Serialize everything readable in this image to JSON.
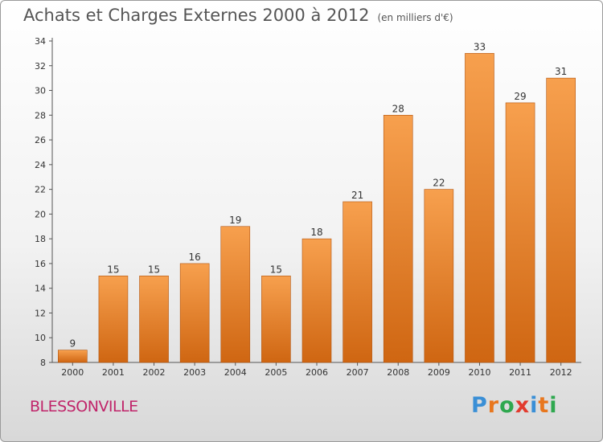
{
  "header": {
    "title": "Achats et Charges Externes 2000 à 2012",
    "unit": "(en milliers d'€)"
  },
  "footer": {
    "commune": "BLESSONVILLE",
    "logo_letters": [
      "P",
      "r",
      "o",
      "x",
      "i",
      "t",
      "i"
    ],
    "logo_colors": [
      "#3a8fd6",
      "#e8771e",
      "#2fa84f",
      "#e23b2e",
      "#3a8fd6",
      "#e8771e",
      "#2fa84f"
    ]
  },
  "chart_data": {
    "type": "bar",
    "title": "Achats et Charges Externes 2000 à 2012",
    "subtitle": "(en milliers d'€)",
    "categories": [
      "2000",
      "2001",
      "2002",
      "2003",
      "2004",
      "2005",
      "2006",
      "2007",
      "2008",
      "2009",
      "2010",
      "2011",
      "2012"
    ],
    "values": [
      9,
      15,
      15,
      16,
      19,
      15,
      18,
      21,
      28,
      22,
      33,
      29,
      31
    ],
    "ylim": [
      8,
      34
    ],
    "yticks": [
      8,
      10,
      12,
      14,
      16,
      18,
      20,
      22,
      24,
      26,
      28,
      30,
      32,
      34
    ],
    "grid": false,
    "bar_color_top": "#f7a04e",
    "bar_color_bottom": "#cf6612",
    "bar_edge": "#b25510"
  }
}
